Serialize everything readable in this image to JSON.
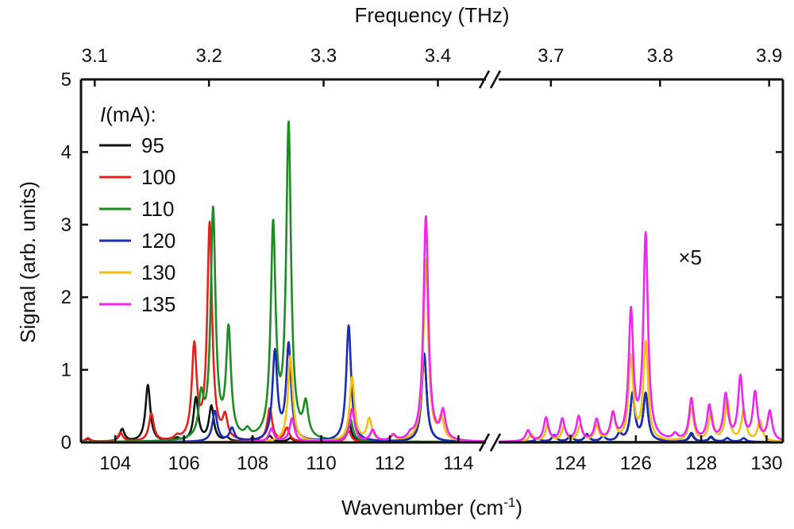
{
  "chart_data": {
    "type": "line",
    "xlabel_main": "Wavenumber (cm",
    "xlabel_sup": "-1",
    "xlabel_close": ")",
    "xlabel_top": "Frequency (THz)",
    "ylabel": "Signal (arb. units)",
    "ylim": [
      0,
      5
    ],
    "yticks": [
      0,
      1,
      2,
      3,
      4,
      5
    ],
    "x_break": true,
    "x_segments": [
      {
        "xlim": [
          103.0,
          114.8
        ],
        "xticks": [
          104,
          106,
          108,
          110,
          112,
          114
        ],
        "top_ticks": [
          {
            "label": "3.1",
            "wn": 103.4
          },
          {
            "label": "3.2",
            "wn": 106.73
          },
          {
            "label": "3.3",
            "wn": 110.07
          },
          {
            "label": "3.4",
            "wn": 113.4
          }
        ]
      },
      {
        "xlim": [
          121.8,
          130.5
        ],
        "xticks": [
          124,
          126,
          128,
          130
        ],
        "top_ticks": [
          {
            "label": "3.7",
            "wn": 123.4
          },
          {
            "label": "3.8",
            "wn": 126.74
          },
          {
            "label": "3.9",
            "wn": 130.08
          }
        ]
      }
    ],
    "legend": {
      "title_italic": "I",
      "title_rest": "(mA):",
      "position": "top-left"
    },
    "annotation": "×5",
    "annotation_wn": 127.3,
    "annotation_y": 2.45,
    "series": [
      {
        "name": "95",
        "color": "#111111",
        "peaks": [
          [
            103.2,
            0.04
          ],
          [
            104.2,
            0.17
          ],
          [
            104.95,
            0.78
          ],
          [
            105.8,
            0.04
          ],
          [
            106.35,
            0.6
          ],
          [
            106.8,
            0.48
          ],
          [
            107.25,
            0.05
          ],
          [
            108.0,
            0.05
          ],
          [
            108.5,
            0.08
          ],
          [
            109.1,
            0.05
          ],
          [
            110.8,
            0.28
          ],
          [
            113.0,
            1.22
          ],
          [
            123.0,
            0.05
          ],
          [
            123.5,
            0.09
          ],
          [
            124.0,
            0.08
          ],
          [
            124.5,
            0.1
          ],
          [
            125.0,
            0.07
          ],
          [
            125.5,
            0.1
          ],
          [
            125.9,
            0.65
          ],
          [
            126.3,
            0.65
          ],
          [
            127.7,
            0.1
          ],
          [
            128.3,
            0.06
          ]
        ]
      },
      {
        "name": "100",
        "color": "#e8201c",
        "peaks": [
          [
            103.2,
            0.05
          ],
          [
            104.15,
            0.12
          ],
          [
            105.05,
            0.38
          ],
          [
            105.8,
            0.05
          ],
          [
            106.3,
            1.28
          ],
          [
            106.75,
            2.98
          ],
          [
            107.2,
            0.3
          ],
          [
            108.5,
            0.45
          ],
          [
            109.0,
            0.18
          ],
          [
            110.8,
            0.15
          ]
        ]
      },
      {
        "name": "110",
        "color": "#1e8c22",
        "peaks": [
          [
            106.5,
            0.55
          ],
          [
            106.85,
            3.15
          ],
          [
            107.3,
            1.48
          ],
          [
            107.85,
            0.1
          ],
          [
            108.6,
            2.9
          ],
          [
            109.05,
            4.3
          ],
          [
            109.55,
            0.45
          ],
          [
            110.85,
            0.3
          ]
        ]
      },
      {
        "name": "120",
        "color": "#1a2db5",
        "peaks": [
          [
            106.9,
            0.42
          ],
          [
            107.4,
            0.18
          ],
          [
            108.65,
            1.22
          ],
          [
            109.05,
            1.32
          ],
          [
            110.8,
            1.6
          ],
          [
            113.0,
            1.22
          ],
          [
            123.0,
            0.05
          ],
          [
            123.5,
            0.09
          ],
          [
            124.0,
            0.08
          ],
          [
            124.5,
            0.1
          ],
          [
            125.0,
            0.07
          ],
          [
            125.5,
            0.1
          ],
          [
            125.9,
            0.65
          ],
          [
            126.3,
            0.65
          ],
          [
            127.7,
            0.12
          ],
          [
            128.3,
            0.07
          ],
          [
            128.8,
            0.05
          ],
          [
            129.3,
            0.05
          ]
        ]
      },
      {
        "name": "130",
        "color": "#f2c012",
        "peaks": [
          [
            109.1,
            1.18
          ],
          [
            110.9,
            0.88
          ],
          [
            111.4,
            0.3
          ],
          [
            112.1,
            0.06
          ],
          [
            113.05,
            2.5
          ],
          [
            113.5,
            0.3
          ],
          [
            122.8,
            0.1
          ],
          [
            123.3,
            0.22
          ],
          [
            123.8,
            0.2
          ],
          [
            124.3,
            0.22
          ],
          [
            124.8,
            0.2
          ],
          [
            125.3,
            0.38
          ],
          [
            125.85,
            1.15
          ],
          [
            126.3,
            1.35
          ],
          [
            127.7,
            0.45
          ],
          [
            128.3,
            0.38
          ],
          [
            128.8,
            0.55
          ],
          [
            129.3,
            0.42
          ],
          [
            129.8,
            0.28
          ]
        ]
      },
      {
        "name": "135",
        "color": "#f025f0",
        "peaks": [
          [
            108.55,
            0.18
          ],
          [
            109.15,
            0.32
          ],
          [
            110.9,
            0.45
          ],
          [
            111.5,
            0.15
          ],
          [
            112.1,
            0.08
          ],
          [
            112.6,
            0.06
          ],
          [
            113.05,
            3.1
          ],
          [
            113.55,
            0.38
          ],
          [
            122.7,
            0.15
          ],
          [
            123.25,
            0.32
          ],
          [
            123.75,
            0.3
          ],
          [
            124.25,
            0.33
          ],
          [
            124.8,
            0.28
          ],
          [
            125.3,
            0.35
          ],
          [
            125.85,
            1.75
          ],
          [
            126.3,
            2.82
          ],
          [
            127.2,
            0.08
          ],
          [
            127.7,
            0.57
          ],
          [
            128.25,
            0.47
          ],
          [
            128.75,
            0.62
          ],
          [
            129.2,
            0.87
          ],
          [
            129.65,
            0.65
          ],
          [
            130.1,
            0.4
          ]
        ]
      }
    ]
  }
}
